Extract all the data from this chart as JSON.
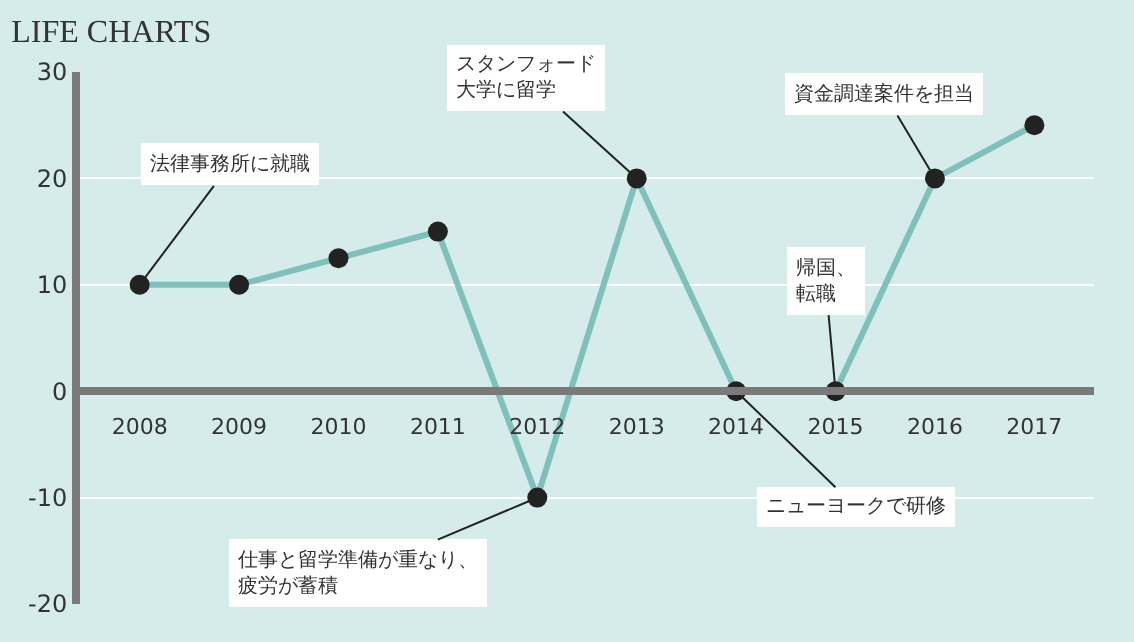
{
  "chart_data": {
    "type": "line",
    "title": "LIFE CHARTS",
    "categories": [
      "2008",
      "2009",
      "2010",
      "2011",
      "2012",
      "2013",
      "2014",
      "2015",
      "2016",
      "2017"
    ],
    "series": [
      {
        "color": "#7fbfbc",
        "values": [
          10,
          10,
          12.5,
          15,
          -10,
          20,
          0,
          0,
          20,
          25
        ]
      }
    ],
    "ylim": [
      -20,
      30
    ],
    "yticks": [
      -20,
      -10,
      0,
      10,
      20,
      30
    ],
    "grid": "y",
    "marker": "circle",
    "line_style": "solid",
    "annotations": [
      {
        "text": "法律事務所に就職",
        "x": "2008",
        "y": 10
      },
      {
        "text": "仕事と留学準備が重なり、疲労が蓄積",
        "x": "2012",
        "y": -10
      },
      {
        "text": "スタンフォード大学に留学",
        "x": "2013",
        "y": 20
      },
      {
        "text": "ニューヨークで研修",
        "x": "2014",
        "y": 0
      },
      {
        "text": "帰国、転職",
        "x": "2015",
        "y": 0
      },
      {
        "text": "資金調達案件を担当",
        "x": "2016",
        "y": 20
      }
    ]
  }
}
